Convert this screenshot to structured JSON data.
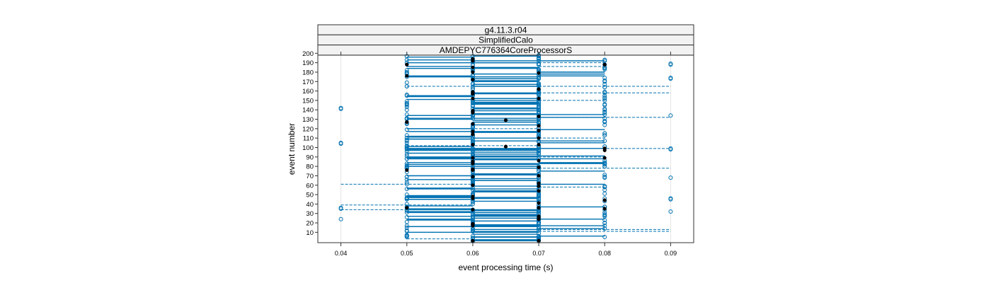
{
  "chart_data": {
    "type": "scatter",
    "strips": [
      "g4.11.3.r04",
      "SimplifiedCalo",
      "AMDEPYC776364CoreProcessorS"
    ],
    "xlabel": "event processing time (s)",
    "ylabel": "event number",
    "xlim": [
      0.0365,
      0.0935
    ],
    "ylim": [
      -1,
      198
    ],
    "xticks": [
      0.04,
      0.05,
      0.06,
      0.07,
      0.08,
      0.09
    ],
    "xtick_labels": [
      "0.04",
      "0.05",
      "0.06",
      "0.07",
      "0.08",
      "0.09"
    ],
    "yticks": [
      10,
      20,
      30,
      40,
      50,
      60,
      70,
      80,
      90,
      100,
      110,
      120,
      130,
      140,
      150,
      160,
      170,
      180,
      190,
      200
    ],
    "ytick_labels": [
      "10",
      "20",
      "30",
      "40",
      "50",
      "60",
      "70",
      "80",
      "90",
      "100",
      "110",
      "120",
      "130",
      "140",
      "150",
      "160",
      "170",
      "180",
      "190",
      "200"
    ],
    "grid": "vertical",
    "colors": {
      "series": "#0072B2",
      "highlight": "#000000",
      "frame": "#333333",
      "strip_bg": "#f2f2f2",
      "grid": "#e6e6e6"
    },
    "outlier_points": [
      {
        "x": 0.04,
        "y": 141
      },
      {
        "x": 0.04,
        "y": 142
      },
      {
        "x": 0.04,
        "y": 104
      },
      {
        "x": 0.04,
        "y": 105
      },
      {
        "x": 0.04,
        "y": 35
      },
      {
        "x": 0.04,
        "y": 36
      },
      {
        "x": 0.04,
        "y": 24
      },
      {
        "x": 0.09,
        "y": 188
      },
      {
        "x": 0.09,
        "y": 189
      },
      {
        "x": 0.09,
        "y": 173
      },
      {
        "x": 0.09,
        "y": 174
      },
      {
        "x": 0.09,
        "y": 134
      },
      {
        "x": 0.09,
        "y": 98
      },
      {
        "x": 0.09,
        "y": 99
      },
      {
        "x": 0.09,
        "y": 68
      },
      {
        "x": 0.09,
        "y": 45
      },
      {
        "x": 0.09,
        "y": 46
      },
      {
        "x": 0.09,
        "y": 32
      }
    ],
    "highlight_points": [
      {
        "x": 0.065,
        "y": 129
      },
      {
        "x": 0.065,
        "y": 101
      },
      {
        "x": 0.08,
        "y": 188
      },
      {
        "x": 0.08,
        "y": 99
      },
      {
        "x": 0.08,
        "y": 44
      },
      {
        "x": 0.05,
        "y": 36
      },
      {
        "x": 0.05,
        "y": 127
      }
    ],
    "dashed_segments": [
      {
        "x1": 0.07,
        "x2": 0.08,
        "y": 190
      },
      {
        "x1": 0.07,
        "x2": 0.08,
        "y": 186
      },
      {
        "x1": 0.07,
        "x2": 0.09,
        "y": 165
      },
      {
        "x1": 0.07,
        "x2": 0.09,
        "y": 158
      },
      {
        "x1": 0.07,
        "x2": 0.09,
        "y": 132
      },
      {
        "x1": 0.07,
        "x2": 0.09,
        "y": 99
      },
      {
        "x1": 0.07,
        "x2": 0.09,
        "y": 78
      },
      {
        "x1": 0.04,
        "x2": 0.06,
        "y": 61
      },
      {
        "x1": 0.04,
        "x2": 0.06,
        "y": 39
      },
      {
        "x1": 0.04,
        "x2": 0.06,
        "y": 34
      },
      {
        "x1": 0.07,
        "x2": 0.09,
        "y": 13
      },
      {
        "x1": 0.07,
        "x2": 0.09,
        "y": 11
      },
      {
        "x1": 0.05,
        "x2": 0.07,
        "y": 102
      },
      {
        "x1": 0.05,
        "x2": 0.07,
        "y": 120
      },
      {
        "x1": 0.05,
        "x2": 0.06,
        "y": 3
      },
      {
        "x1": 0.07,
        "x2": 0.08,
        "y": 150
      },
      {
        "x1": 0.07,
        "x2": 0.08,
        "y": 110
      },
      {
        "x1": 0.07,
        "x2": 0.08,
        "y": 58
      },
      {
        "x1": 0.07,
        "x2": 0.08,
        "y": 90
      },
      {
        "x1": 0.05,
        "x2": 0.06,
        "y": 165
      }
    ]
  }
}
